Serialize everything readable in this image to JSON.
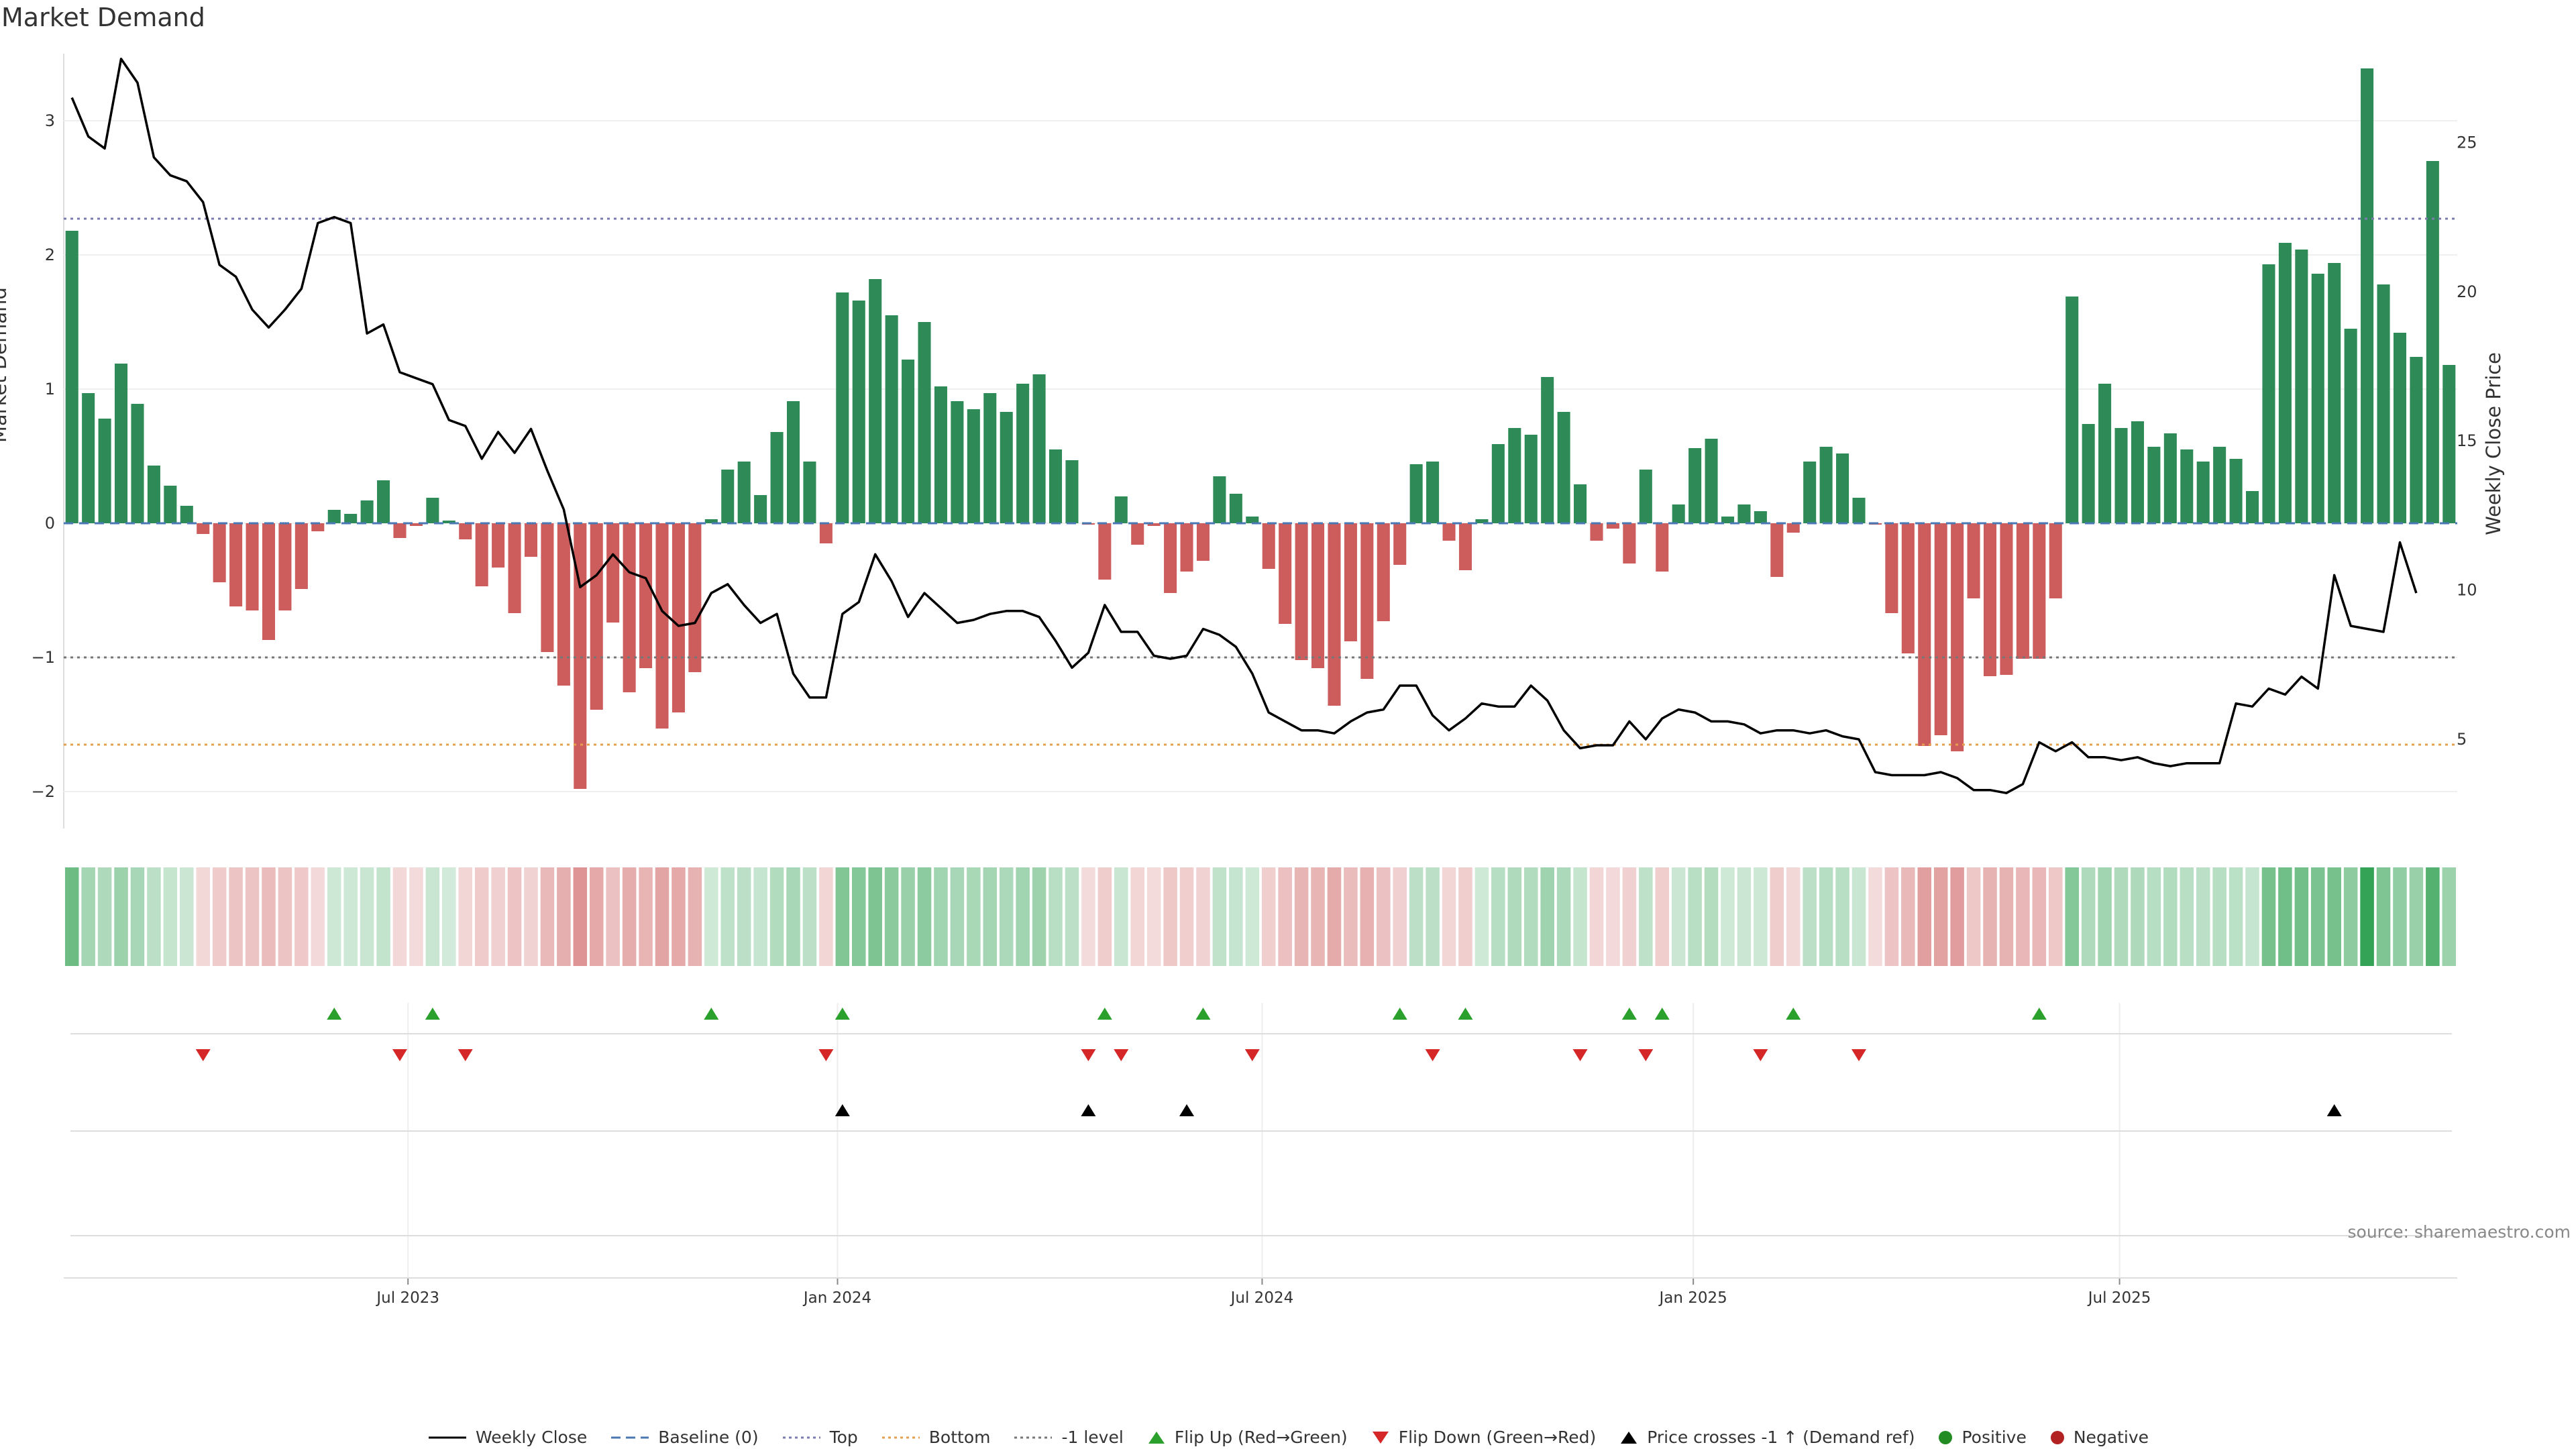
{
  "chart_data": {
    "type": "bar+line",
    "title": "Market Demand",
    "ylabel": "Market Demand",
    "y2label": "Weekly Close Price",
    "ylim": [
      -2.3,
      3.55
    ],
    "y2lim": [
      1.9,
      28.2
    ],
    "yticks": [
      3,
      2,
      1,
      0,
      -1,
      -2
    ],
    "ytick_labels": [
      "3",
      "2",
      "1",
      "0",
      "−1",
      "−2"
    ],
    "y2ticks": [
      25,
      20,
      15,
      10,
      5
    ],
    "y2tick_labels": [
      "25",
      "20",
      "15",
      "10",
      "5"
    ],
    "xticks": [
      20.5,
      46.7,
      72.6,
      98.9,
      124.9
    ],
    "xtick_labels": [
      "Jul 2023",
      "Jan 2024",
      "Jul 2024",
      "Jan 2025",
      "Jul 2025"
    ],
    "reference_lines": {
      "top": 2.27,
      "bottom": -1.65,
      "minus_one": -1.0,
      "baseline": 0
    },
    "colors": {
      "positive_bar": "#2e8b57",
      "negative_bar": "#cd5c5c",
      "line": "#000000",
      "flip_up": "#2ca02c",
      "flip_down": "#d62728",
      "price_cross": "#000000",
      "top": "#7b7bb0",
      "bottom": "#e6a04c",
      "minus_one": "#777777",
      "baseline": "#4a78b5",
      "positive_dot": "#228b22",
      "negative_dot": "#b22222"
    },
    "series": [
      {
        "name": "Market Demand",
        "values": [
          2.18,
          0.97,
          0.78,
          1.19,
          0.89,
          0.43,
          0.28,
          0.13,
          -0.08,
          -0.44,
          -0.62,
          -0.65,
          -0.87,
          -0.65,
          -0.49,
          -0.06,
          0.1,
          0.07,
          0.17,
          0.32,
          -0.11,
          -0.02,
          0.19,
          0.02,
          -0.12,
          -0.47,
          -0.33,
          -0.67,
          -0.25,
          -0.96,
          -1.21,
          -1.98,
          -1.39,
          -0.74,
          -1.26,
          -1.08,
          -1.53,
          -1.41,
          -1.11,
          0.03,
          0.4,
          0.46,
          0.21,
          0.68,
          0.91,
          0.46,
          -0.15,
          1.72,
          1.66,
          1.82,
          1.55,
          1.22,
          1.5,
          1.02,
          0.91,
          0.85,
          0.97,
          0.83,
          1.04,
          1.11,
          0.55,
          0.47,
          -0.01,
          -0.42,
          0.2,
          -0.16,
          -0.02,
          -0.52,
          -0.36,
          -0.28,
          0.35,
          0.22,
          0.05,
          -0.34,
          -0.75,
          -1.02,
          -1.08,
          -1.36,
          -0.88,
          -1.16,
          -0.73,
          -0.31,
          0.44,
          0.46,
          -0.13,
          -0.35,
          0.03,
          0.59,
          0.71,
          0.66,
          1.09,
          0.83,
          0.29,
          -0.13,
          -0.04,
          -0.3,
          0.4,
          -0.36,
          0.14,
          0.56,
          0.63,
          0.05,
          0.14,
          0.09,
          -0.4,
          -0.07,
          0.46,
          0.57,
          0.52,
          0.19,
          -0.01,
          -0.67,
          -0.97,
          -1.66,
          -1.58,
          -1.7,
          -0.56,
          -1.14,
          -1.13,
          -1.01,
          -1.01,
          -0.56,
          1.69,
          0.74,
          1.04,
          0.71,
          0.76,
          0.57,
          0.67,
          0.55,
          0.46,
          0.57,
          0.48,
          0.24,
          1.93,
          2.09,
          2.04,
          1.86,
          1.94,
          1.45,
          3.39,
          1.78,
          1.42,
          1.24,
          2.7,
          1.18
        ]
      },
      {
        "name": "Weekly Close",
        "values": [
          26.5,
          25.2,
          24.8,
          27.8,
          27.0,
          24.5,
          23.9,
          23.7,
          23.0,
          20.9,
          20.5,
          19.4,
          18.8,
          19.4,
          20.1,
          22.3,
          22.5,
          22.3,
          18.6,
          18.9,
          17.3,
          17.1,
          16.9,
          15.7,
          15.5,
          14.4,
          15.3,
          14.6,
          15.4,
          14.0,
          12.7,
          10.1,
          10.5,
          11.2,
          10.6,
          10.4,
          9.3,
          8.8,
          8.9,
          9.9,
          10.2,
          9.5,
          8.9,
          9.2,
          7.2,
          6.4,
          6.4,
          9.2,
          9.6,
          11.2,
          10.3,
          9.1,
          9.9,
          9.4,
          8.9,
          9.0,
          9.2,
          9.3,
          9.3,
          9.1,
          8.3,
          7.4,
          7.9,
          9.5,
          8.6,
          8.6,
          7.8,
          7.7,
          7.8,
          8.7,
          8.5,
          8.1,
          7.2,
          5.9,
          5.6,
          5.3,
          5.3,
          5.2,
          5.6,
          5.9,
          6.0,
          6.8,
          6.8,
          5.8,
          5.3,
          5.7,
          6.2,
          6.1,
          6.1,
          6.8,
          6.3,
          5.3,
          4.7,
          4.8,
          4.8,
          5.6,
          5.0,
          5.7,
          6.0,
          5.9,
          5.6,
          5.6,
          5.5,
          5.2,
          5.3,
          5.3,
          5.2,
          5.3,
          5.1,
          5.0,
          3.9,
          3.8,
          3.8,
          3.8,
          3.9,
          3.7,
          3.3,
          3.3,
          3.2,
          3.5,
          4.9,
          4.6,
          4.9,
          4.4,
          4.4,
          4.3,
          4.4,
          4.2,
          4.1,
          4.2,
          4.2,
          4.2,
          6.2,
          6.1,
          6.7,
          6.5,
          7.1,
          6.7,
          10.5,
          8.8,
          8.7,
          8.6,
          11.6,
          9.9
        ]
      }
    ],
    "flip_up_indices": [
      16,
      22,
      39,
      47,
      63,
      69,
      81,
      85,
      95,
      97,
      105,
      120
    ],
    "flip_down_indices": [
      8,
      20,
      24,
      46,
      62,
      64,
      72,
      83,
      92,
      96,
      103,
      109
    ],
    "price_cross_indices": [
      47,
      62,
      68,
      138
    ]
  },
  "legend": {
    "weekly_close": "Weekly Close",
    "baseline": "Baseline (0)",
    "top": "Top",
    "bottom": "Bottom",
    "minus_one": "-1 level",
    "flip_up": "Flip Up (Red→Green)",
    "flip_down": "Flip Down (Green→Red)",
    "price_cross": "Price crosses -1 ↑ (Demand ref)",
    "positive": "Positive",
    "negative": "Negative"
  },
  "source": "source: sharemaestro.com"
}
